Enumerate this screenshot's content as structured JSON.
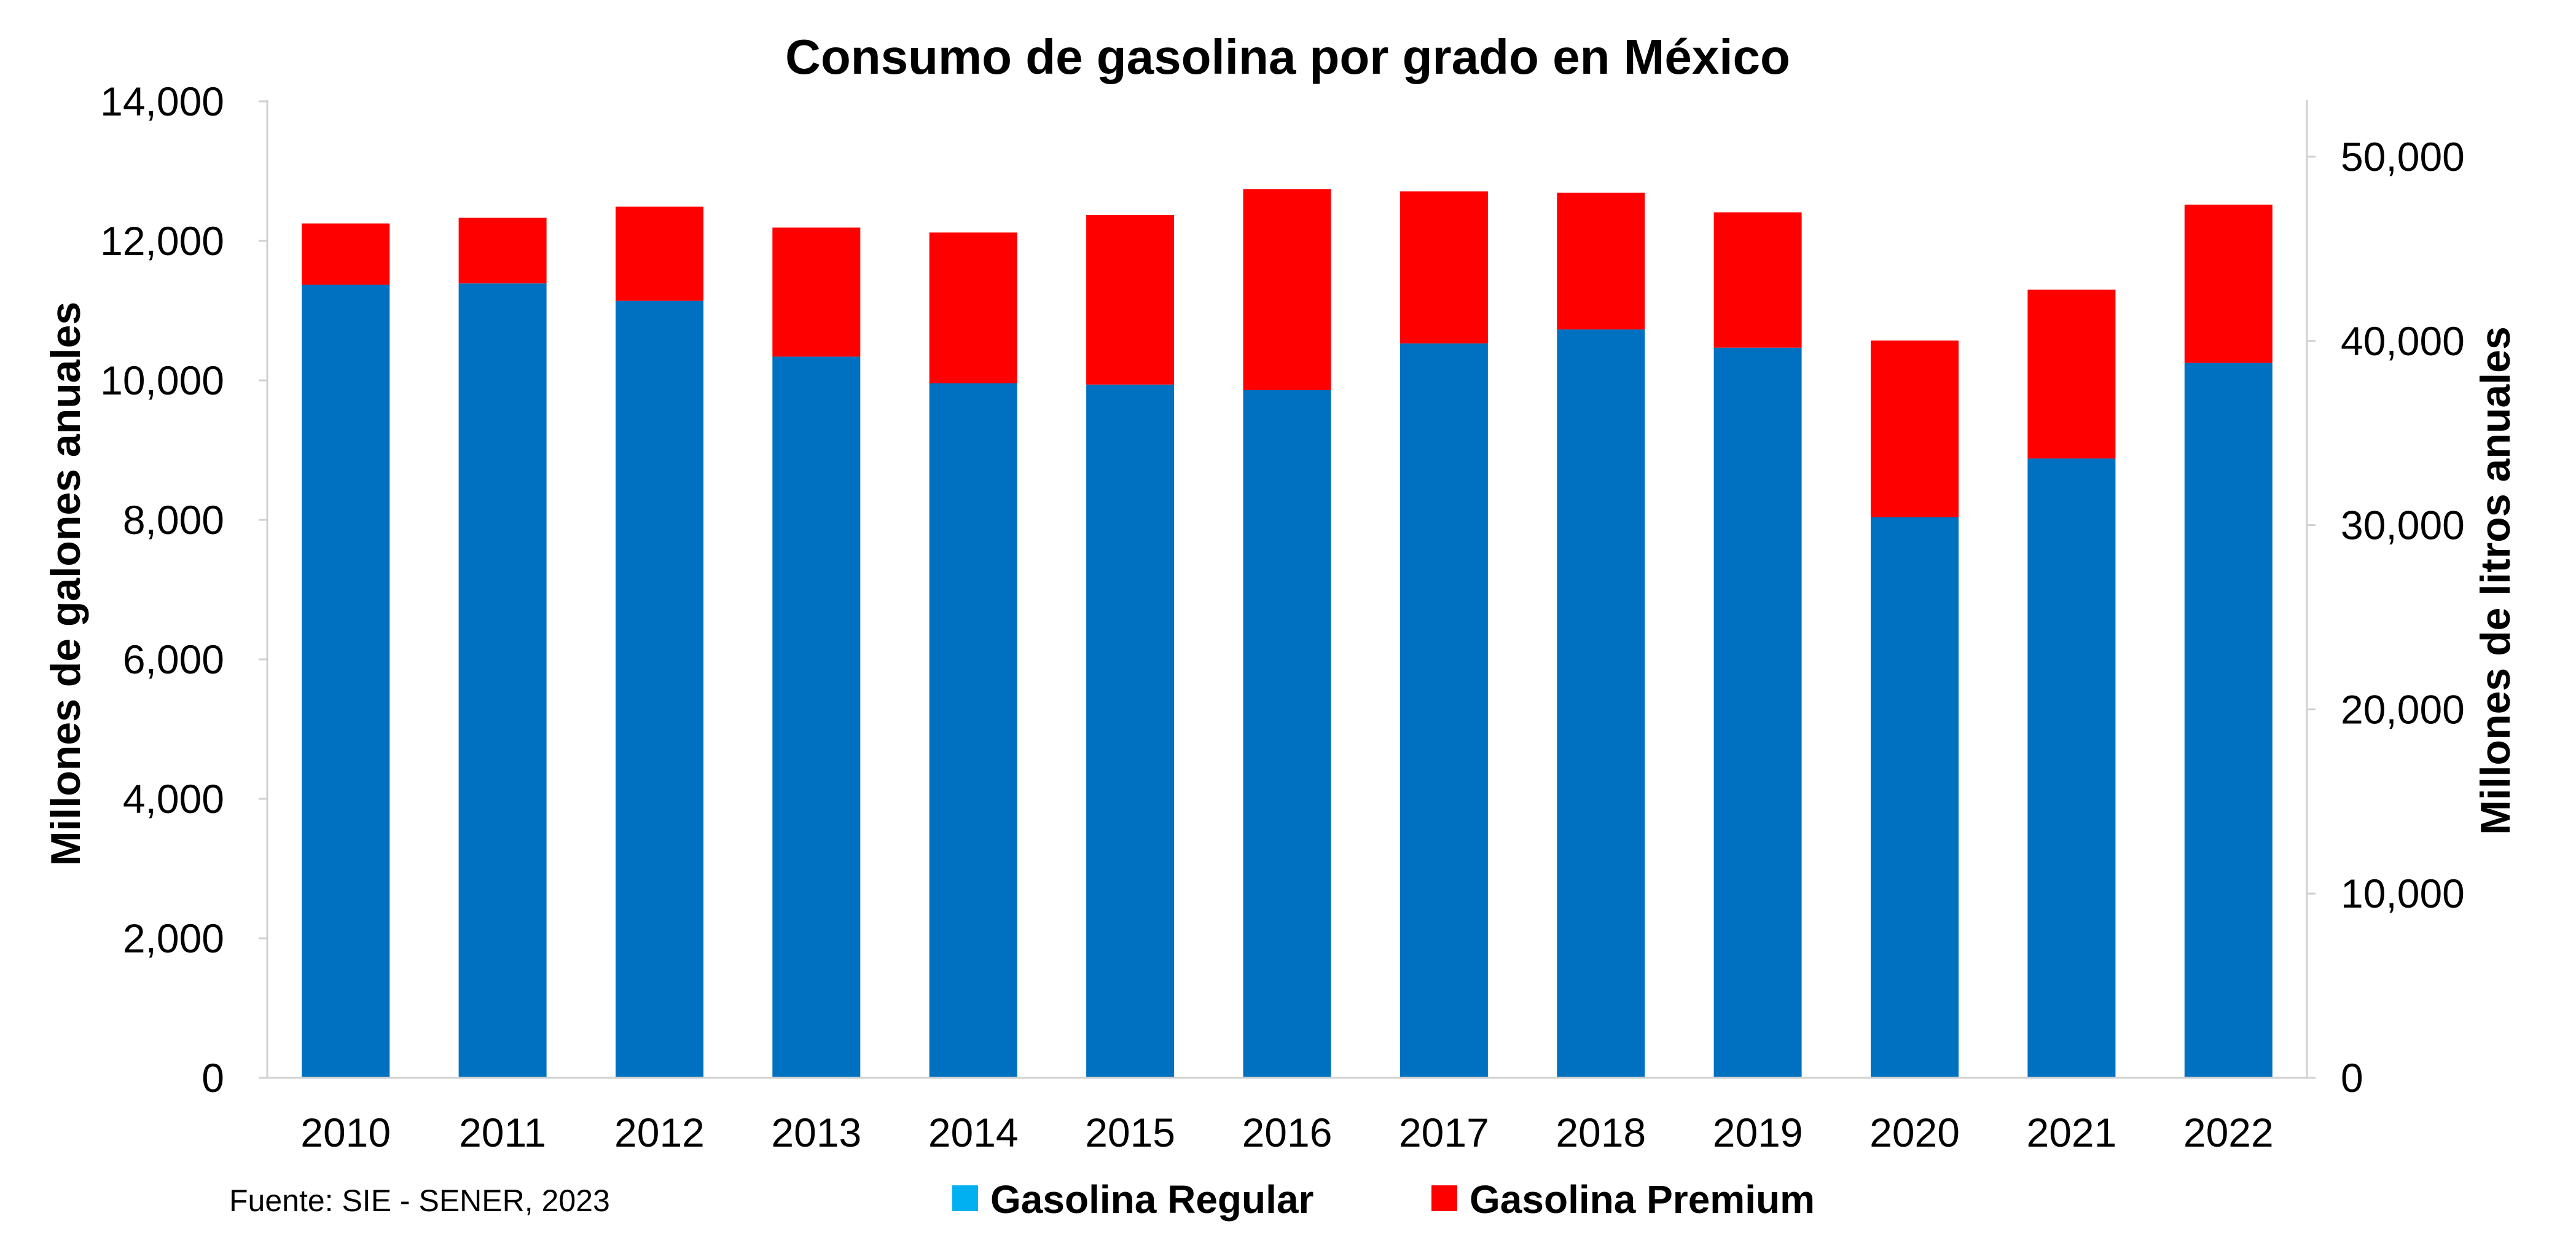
{
  "chart_data": {
    "type": "bar",
    "stacked": true,
    "title": "Consumo de gasolina por grado en México",
    "ylabel": "Millones de galones anuales",
    "y2label": "Millones de litros anuales",
    "categories": [
      "2010",
      "2011",
      "2012",
      "2013",
      "2014",
      "2015",
      "2016",
      "2017",
      "2018",
      "2019",
      "2020",
      "2021",
      "2022"
    ],
    "series": [
      {
        "name": "Gasolina Regular",
        "color": "#0070C0",
        "legend_color": "#00B0F0",
        "values": [
          11370,
          11390,
          11140,
          10340,
          9960,
          9940,
          9860,
          10530,
          10730,
          10470,
          8040,
          8880,
          10250
        ]
      },
      {
        "name": "Gasolina Premium",
        "color": "#FF0000",
        "legend_color": "#FF0000",
        "values": [
          880,
          940,
          1350,
          1850,
          2160,
          2430,
          2880,
          2180,
          1960,
          1940,
          2530,
          2420,
          2270
        ]
      }
    ],
    "ylim": [
      0,
      14000
    ],
    "yticks": [
      0,
      2000,
      4000,
      6000,
      8000,
      10000,
      12000,
      14000
    ],
    "ytick_labels": [
      "0",
      "2,000",
      "4,000",
      "6,000",
      "8,000",
      "10,000",
      "12,000",
      "14,000"
    ],
    "y2lim": [
      0,
      53000
    ],
    "y2ticks": [
      0,
      10000,
      20000,
      30000,
      40000,
      50000
    ],
    "y2tick_labels": [
      "0",
      "10,000",
      "20,000",
      "30,000",
      "40,000",
      "50,000"
    ],
    "grid": false,
    "legend_position": "bottom"
  },
  "source": "Fuente: SIE - SENER, 2023"
}
